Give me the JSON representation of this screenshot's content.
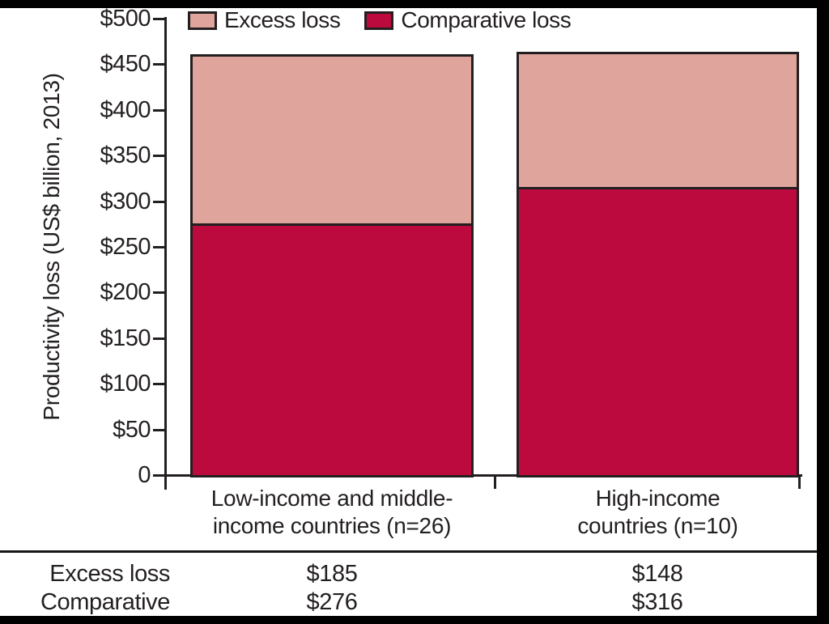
{
  "chart_data": {
    "type": "bar",
    "stacked": true,
    "title": "",
    "ylabel": "Productivity loss (US$ billion, 2013)",
    "xlabel": "",
    "categories": [
      "Low-income and middle-income countries (n=26)",
      "High-income countries (n=10)"
    ],
    "categories_display": [
      [
        "Low-income and middle-",
        "income countries (n=26)"
      ],
      [
        "High-income",
        "countries (n=10)"
      ]
    ],
    "series": [
      {
        "name": "Comparative loss",
        "values": [
          276,
          316
        ],
        "color": "#bd0a3e"
      },
      {
        "name": "Excess loss",
        "values": [
          185,
          148
        ],
        "color": "#dfa49c"
      }
    ],
    "totals": [
      461,
      464
    ],
    "ylim": [
      0,
      500
    ],
    "y_ticks": [
      500,
      450,
      400,
      350,
      300,
      250,
      200,
      150,
      100,
      50,
      0
    ],
    "y_tick_labels": [
      "$500",
      "$450",
      "$400",
      "$350",
      "$300",
      "$250",
      "$200",
      "$150",
      "$100",
      "$50",
      "0"
    ],
    "grid": false,
    "legend_position": "top"
  },
  "legend": {
    "items": [
      {
        "label": "Excess loss",
        "color": "#dfa49c"
      },
      {
        "label": "Comparative loss",
        "color": "#bd0a3e"
      }
    ]
  },
  "y_axis_title": "Productivity loss (US$ billion, 2013)",
  "table": {
    "rows": [
      {
        "label": "Excess loss",
        "values": [
          "$185",
          "$148"
        ]
      },
      {
        "label": "Comparative loss",
        "values": [
          "$276",
          "$316"
        ]
      }
    ]
  },
  "colors": {
    "excess": "#dfa49c",
    "comparative": "#bd0a3e",
    "axis": "#231f20",
    "frame": "#000000"
  }
}
